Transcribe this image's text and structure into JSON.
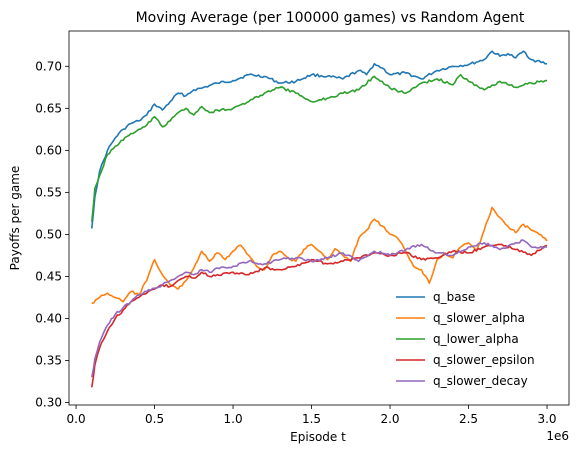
{
  "chart_data": {
    "type": "line",
    "title": "Moving Average (per 100000 games) vs Random Agent",
    "xlabel": "Episode t",
    "ylabel": "Payoffs per game",
    "x_offset_label": "1e6",
    "xlim": [
      -0.045,
      3.14
    ],
    "ylim": [
      0.297,
      0.742
    ],
    "xticks": [
      0.0,
      0.5,
      1.0,
      1.5,
      2.0,
      2.5,
      3.0
    ],
    "xtick_labels": [
      "0.0",
      "0.5",
      "1.0",
      "1.5",
      "2.0",
      "2.5",
      "3.0"
    ],
    "yticks": [
      0.3,
      0.35,
      0.4,
      0.45,
      0.5,
      0.55,
      0.6,
      0.65,
      0.7
    ],
    "ytick_labels": [
      "0.30",
      "0.35",
      "0.40",
      "0.45",
      "0.50",
      "0.55",
      "0.60",
      "0.65",
      "0.70"
    ],
    "grid": false,
    "legend_position": "lower right",
    "series": [
      {
        "name": "q_base",
        "color": "#1f77b4",
        "x": [
          0.1,
          0.12,
          0.15,
          0.2,
          0.25,
          0.3,
          0.35,
          0.4,
          0.45,
          0.5,
          0.55,
          0.6,
          0.65,
          0.7,
          0.75,
          0.8,
          0.9,
          1.0,
          1.1,
          1.2,
          1.3,
          1.4,
          1.5,
          1.6,
          1.7,
          1.8,
          1.85,
          1.9,
          1.95,
          2.0,
          2.1,
          2.2,
          2.3,
          2.4,
          2.5,
          2.6,
          2.65,
          2.7,
          2.75,
          2.8,
          2.85,
          2.9,
          3.0
        ],
        "y": [
          0.507,
          0.545,
          0.575,
          0.6,
          0.615,
          0.625,
          0.632,
          0.635,
          0.642,
          0.655,
          0.648,
          0.658,
          0.668,
          0.665,
          0.672,
          0.674,
          0.68,
          0.683,
          0.69,
          0.688,
          0.68,
          0.682,
          0.69,
          0.688,
          0.685,
          0.695,
          0.69,
          0.703,
          0.698,
          0.69,
          0.692,
          0.685,
          0.695,
          0.7,
          0.702,
          0.708,
          0.718,
          0.712,
          0.715,
          0.71,
          0.718,
          0.708,
          0.703
        ]
      },
      {
        "name": "q_slower_alpha",
        "color": "#ff7f0e",
        "x": [
          0.1,
          0.15,
          0.2,
          0.25,
          0.3,
          0.35,
          0.4,
          0.45,
          0.5,
          0.55,
          0.6,
          0.65,
          0.7,
          0.75,
          0.8,
          0.85,
          0.9,
          0.95,
          1.0,
          1.05,
          1.1,
          1.15,
          1.2,
          1.25,
          1.3,
          1.35,
          1.4,
          1.45,
          1.5,
          1.55,
          1.6,
          1.65,
          1.7,
          1.75,
          1.8,
          1.85,
          1.9,
          1.95,
          2.0,
          2.05,
          2.1,
          2.15,
          2.2,
          2.25,
          2.3,
          2.35,
          2.4,
          2.45,
          2.5,
          2.55,
          2.6,
          2.65,
          2.7,
          2.75,
          2.8,
          2.85,
          2.9,
          2.95,
          3.0
        ],
        "y": [
          0.418,
          0.425,
          0.43,
          0.425,
          0.42,
          0.432,
          0.428,
          0.445,
          0.47,
          0.452,
          0.44,
          0.435,
          0.445,
          0.46,
          0.48,
          0.468,
          0.478,
          0.47,
          0.48,
          0.487,
          0.475,
          0.462,
          0.458,
          0.475,
          0.48,
          0.472,
          0.468,
          0.482,
          0.488,
          0.48,
          0.47,
          0.483,
          0.475,
          0.468,
          0.495,
          0.505,
          0.518,
          0.51,
          0.5,
          0.495,
          0.48,
          0.462,
          0.458,
          0.442,
          0.47,
          0.478,
          0.472,
          0.485,
          0.49,
          0.48,
          0.505,
          0.532,
          0.52,
          0.51,
          0.502,
          0.512,
          0.505,
          0.5,
          0.492
        ]
      },
      {
        "name": "q_lower_alpha",
        "color": "#2ca02c",
        "x": [
          0.1,
          0.12,
          0.15,
          0.2,
          0.25,
          0.3,
          0.35,
          0.4,
          0.45,
          0.5,
          0.55,
          0.6,
          0.65,
          0.7,
          0.75,
          0.8,
          0.85,
          0.9,
          1.0,
          1.1,
          1.2,
          1.3,
          1.4,
          1.5,
          1.6,
          1.7,
          1.8,
          1.9,
          1.95,
          2.0,
          2.1,
          2.2,
          2.3,
          2.4,
          2.45,
          2.5,
          2.6,
          2.7,
          2.8,
          2.9,
          3.0
        ],
        "y": [
          0.515,
          0.555,
          0.57,
          0.595,
          0.605,
          0.612,
          0.62,
          0.625,
          0.63,
          0.64,
          0.628,
          0.635,
          0.645,
          0.65,
          0.642,
          0.652,
          0.645,
          0.648,
          0.65,
          0.658,
          0.668,
          0.675,
          0.668,
          0.658,
          0.662,
          0.668,
          0.672,
          0.688,
          0.682,
          0.674,
          0.668,
          0.68,
          0.685,
          0.678,
          0.69,
          0.682,
          0.672,
          0.682,
          0.675,
          0.68,
          0.683
        ]
      },
      {
        "name": "q_slower_epsilon",
        "color": "#d62728",
        "x": [
          0.1,
          0.12,
          0.15,
          0.2,
          0.25,
          0.3,
          0.35,
          0.4,
          0.45,
          0.5,
          0.55,
          0.6,
          0.65,
          0.7,
          0.75,
          0.8,
          0.85,
          0.9,
          1.0,
          1.1,
          1.2,
          1.3,
          1.4,
          1.5,
          1.6,
          1.7,
          1.8,
          1.9,
          2.0,
          2.1,
          2.2,
          2.3,
          2.4,
          2.5,
          2.6,
          2.7,
          2.8,
          2.9,
          3.0
        ],
        "y": [
          0.318,
          0.345,
          0.365,
          0.385,
          0.4,
          0.41,
          0.42,
          0.425,
          0.43,
          0.435,
          0.44,
          0.438,
          0.445,
          0.45,
          0.448,
          0.455,
          0.45,
          0.452,
          0.455,
          0.452,
          0.46,
          0.458,
          0.462,
          0.47,
          0.465,
          0.468,
          0.472,
          0.478,
          0.475,
          0.478,
          0.47,
          0.472,
          0.48,
          0.478,
          0.485,
          0.488,
          0.482,
          0.475,
          0.487
        ]
      },
      {
        "name": "q_slower_decay",
        "color": "#9467bd",
        "x": [
          0.1,
          0.12,
          0.15,
          0.2,
          0.25,
          0.3,
          0.35,
          0.4,
          0.45,
          0.5,
          0.55,
          0.6,
          0.65,
          0.7,
          0.75,
          0.8,
          0.85,
          0.9,
          1.0,
          1.1,
          1.2,
          1.3,
          1.4,
          1.5,
          1.6,
          1.7,
          1.8,
          1.9,
          2.0,
          2.1,
          2.2,
          2.3,
          2.4,
          2.5,
          2.6,
          2.7,
          2.8,
          2.85,
          2.9,
          3.0
        ],
        "y": [
          0.33,
          0.352,
          0.372,
          0.392,
          0.405,
          0.413,
          0.42,
          0.428,
          0.432,
          0.436,
          0.44,
          0.445,
          0.45,
          0.455,
          0.452,
          0.458,
          0.455,
          0.46,
          0.462,
          0.468,
          0.465,
          0.47,
          0.472,
          0.468,
          0.472,
          0.478,
          0.468,
          0.48,
          0.475,
          0.482,
          0.488,
          0.478,
          0.475,
          0.485,
          0.49,
          0.482,
          0.49,
          0.493,
          0.485,
          0.485
        ]
      }
    ]
  }
}
